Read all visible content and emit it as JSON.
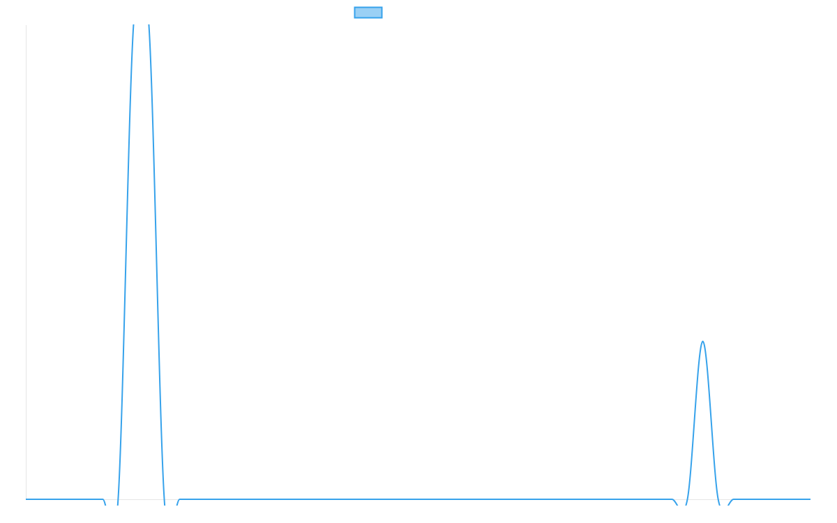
{
  "chart_data": {
    "type": "line",
    "title": "",
    "xlabel": "",
    "ylabel": "",
    "x": [
      0,
      1,
      2,
      3,
      4,
      5,
      6,
      7,
      8,
      9,
      10,
      11,
      12,
      13,
      14,
      15,
      16,
      17,
      18,
      19,
      20,
      21,
      22,
      23,
      24,
      25,
      26,
      27,
      28,
      29,
      30,
      31,
      32,
      33,
      34,
      35,
      36,
      37,
      38,
      39,
      40,
      41,
      42,
      43,
      44,
      45,
      46,
      47,
      48,
      49,
      50,
      51
    ],
    "series": [
      {
        "name": "",
        "values": [
          0,
          0,
          0,
          0,
          0,
          0,
          0,
          1,
          1,
          0,
          0,
          0,
          0,
          0,
          0,
          0,
          0,
          0,
          0,
          0,
          0,
          0,
          0,
          0,
          0,
          0,
          0,
          0,
          0,
          0,
          0,
          0,
          0,
          0,
          0,
          0,
          0,
          0,
          0,
          0,
          0,
          0,
          0,
          0,
          0.333,
          0,
          0,
          0,
          0,
          0,
          0,
          0
        ],
        "color": "#36A2EB",
        "fill_color": "rgba(54,162,235,0.5)"
      }
    ],
    "ylim": [
      0,
      1
    ],
    "grid": false,
    "tick_labels_shown": false,
    "legend": "top-center",
    "smooth": true
  }
}
